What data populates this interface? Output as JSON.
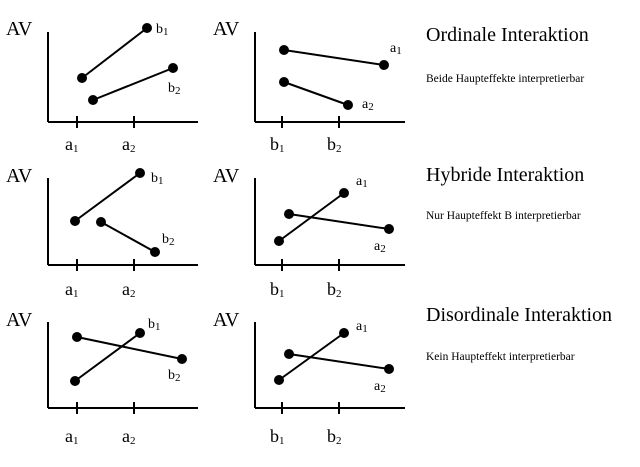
{
  "panels": [
    {
      "id": "r1c1",
      "y_label": "AV",
      "x_ticks": [
        {
          "base": "a",
          "sub": "1"
        },
        {
          "base": "a",
          "sub": "2"
        }
      ],
      "lines": [
        {
          "base": "b",
          "sub": "1"
        },
        {
          "base": "b",
          "sub": "2"
        }
      ]
    },
    {
      "id": "r1c2",
      "y_label": "AV",
      "x_ticks": [
        {
          "base": "b",
          "sub": "1"
        },
        {
          "base": "b",
          "sub": "2"
        }
      ],
      "lines": [
        {
          "base": "a",
          "sub": "1"
        },
        {
          "base": "a",
          "sub": "2"
        }
      ]
    },
    {
      "id": "r2c1",
      "y_label": "AV",
      "x_ticks": [
        {
          "base": "a",
          "sub": "1"
        },
        {
          "base": "a",
          "sub": "2"
        }
      ],
      "lines": [
        {
          "base": "b",
          "sub": "1"
        },
        {
          "base": "b",
          "sub": "2"
        }
      ]
    },
    {
      "id": "r2c2",
      "y_label": "AV",
      "x_ticks": [
        {
          "base": "b",
          "sub": "1"
        },
        {
          "base": "b",
          "sub": "2"
        }
      ],
      "lines": [
        {
          "base": "a",
          "sub": "1"
        },
        {
          "base": "a",
          "sub": "2"
        }
      ]
    },
    {
      "id": "r3c1",
      "y_label": "AV",
      "x_ticks": [
        {
          "base": "a",
          "sub": "1"
        },
        {
          "base": "a",
          "sub": "2"
        }
      ],
      "lines": [
        {
          "base": "b",
          "sub": "1"
        },
        {
          "base": "b",
          "sub": "2"
        }
      ]
    },
    {
      "id": "r3c2",
      "y_label": "AV",
      "x_ticks": [
        {
          "base": "b",
          "sub": "1"
        },
        {
          "base": "b",
          "sub": "2"
        }
      ],
      "lines": [
        {
          "base": "a",
          "sub": "1"
        },
        {
          "base": "a",
          "sub": "2"
        }
      ]
    }
  ],
  "rows": [
    {
      "title": "Ordinale Interaktion",
      "description": "Beide Haupteffekte interpretierbar"
    },
    {
      "title": "Hybride Interaktion",
      "description": "Nur Haupteffekt B interpretierbar"
    },
    {
      "title": "Disordinale Interaktion",
      "description": "Kein Haupteffekt interpretierbar"
    }
  ]
}
